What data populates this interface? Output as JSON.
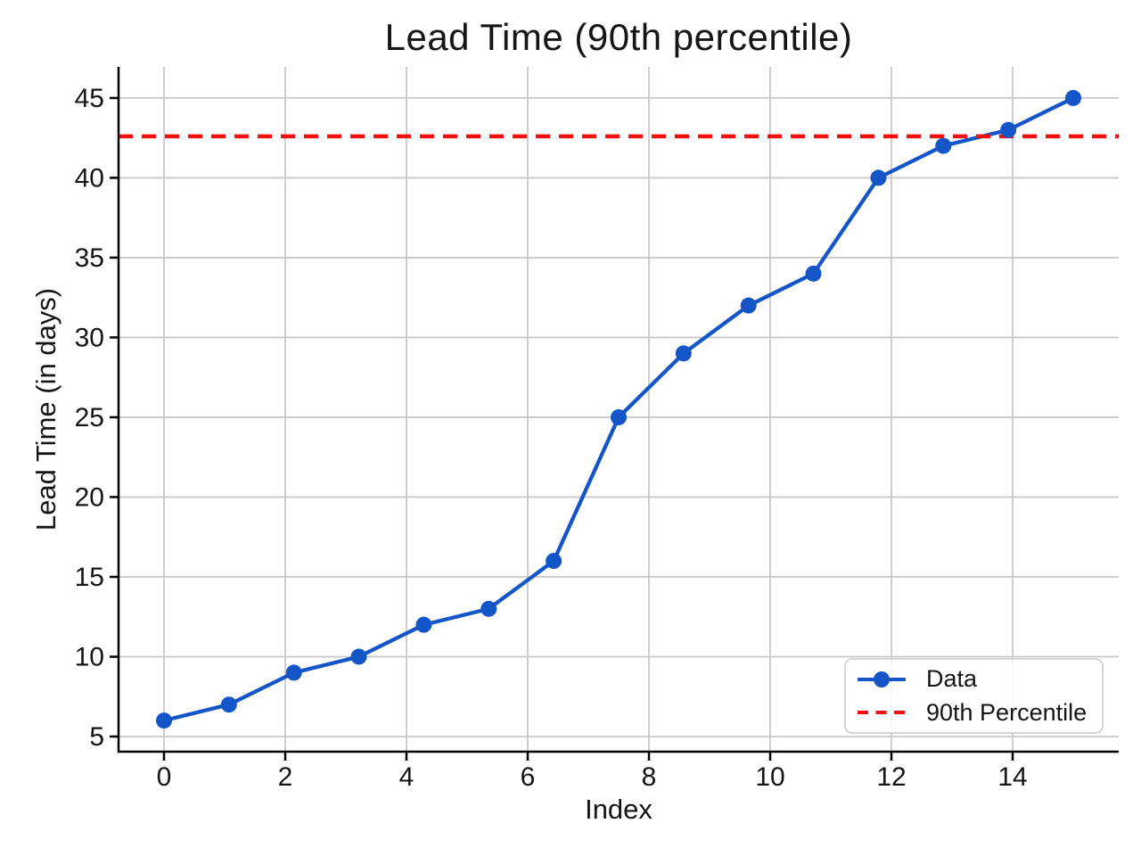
{
  "chart_data": {
    "type": "line",
    "title": "Lead Time (90th percentile)",
    "xlabel": "Index",
    "ylabel": "Lead Time (in days)",
    "x": [
      0,
      1.071,
      2.143,
      3.214,
      4.286,
      5.357,
      6.429,
      7.5,
      8.571,
      9.643,
      10.714,
      11.786,
      12.857,
      13.929,
      15
    ],
    "series": [
      {
        "name": "Data",
        "values": [
          6,
          7,
          9,
          10,
          12,
          13,
          16,
          25,
          29,
          32,
          34,
          40,
          42,
          43,
          45
        ]
      }
    ],
    "percentile_line": {
      "label": "90th Percentile",
      "value": 42.6
    },
    "xlim": [
      -0.75,
      15.75
    ],
    "ylim": [
      4.05,
      46.95
    ],
    "xticks": [
      0,
      2,
      4,
      6,
      8,
      10,
      12,
      14
    ],
    "yticks": [
      5,
      10,
      15,
      20,
      25,
      30,
      35,
      40,
      45
    ],
    "grid": true,
    "legend_position": "lower right",
    "colors": {
      "data": "#1456c8",
      "percentile": "#f40f0f",
      "grid": "#c9c9c9",
      "axis": "#000000",
      "text": "#151515",
      "background": "#ffffff"
    }
  },
  "legend": {
    "items": [
      {
        "label": "Data"
      },
      {
        "label": "90th Percentile"
      }
    ]
  }
}
